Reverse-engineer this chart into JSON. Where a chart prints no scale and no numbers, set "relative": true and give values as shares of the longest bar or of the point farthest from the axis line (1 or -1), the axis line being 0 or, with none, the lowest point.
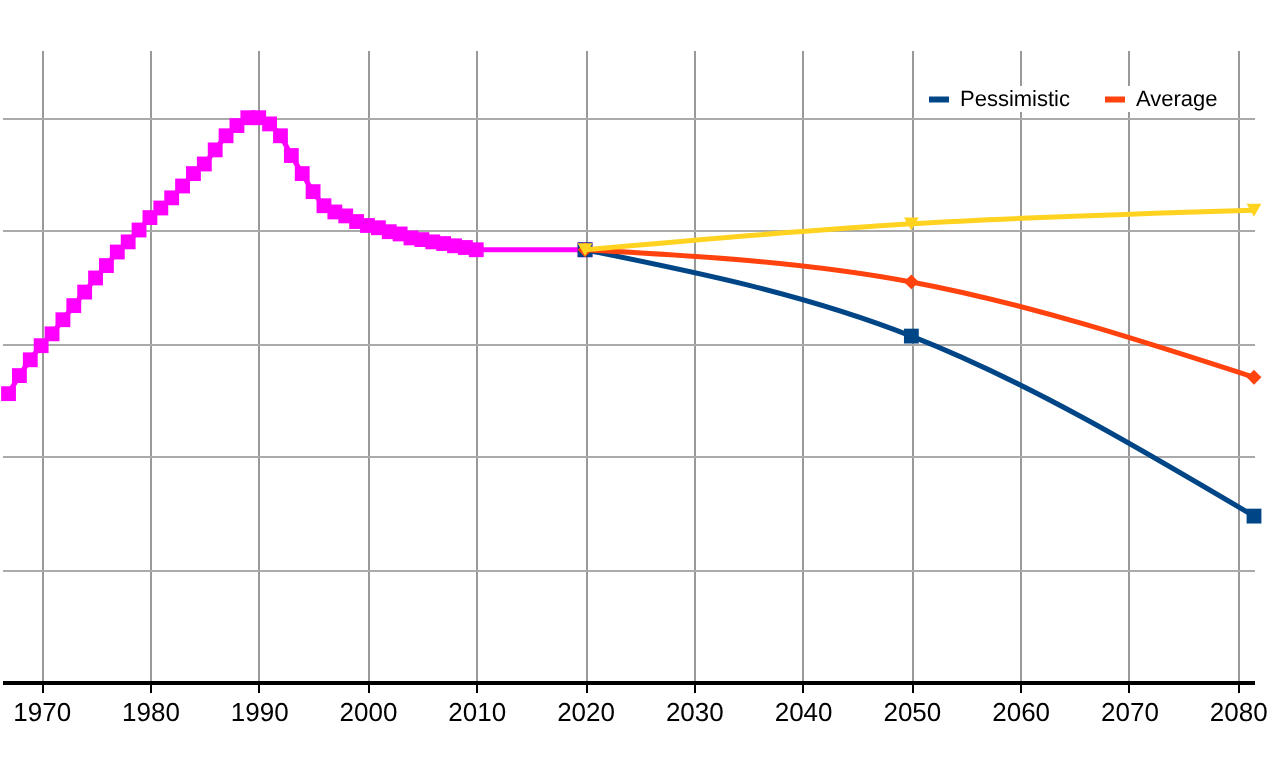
{
  "chart_data": {
    "type": "line",
    "relative": true,
    "grid": true,
    "legend": "top right",
    "line_style": "solid",
    "xlim": [
      1966.4,
      2081.5
    ],
    "xticks": [
      1970,
      1980,
      1990,
      2000,
      2010,
      2020,
      2030,
      2040,
      2050,
      2060,
      2070,
      2080
    ],
    "series": [
      {
        "color": "#ff00ff",
        "marker": "square",
        "x": [
          1967,
          1968,
          1969,
          1970,
          1971,
          1972,
          1973,
          1974,
          1975,
          1976,
          1977,
          1978,
          1979,
          1980,
          1981,
          1982,
          1983,
          1984,
          1985,
          1986,
          1987,
          1988,
          1989,
          1990,
          1991,
          1992,
          1993,
          1994,
          1995,
          1996,
          1997,
          1998,
          1999,
          2000,
          2001,
          2002,
          2003,
          2004,
          2005,
          2006,
          2007,
          2008,
          2009,
          2010,
          2020
        ],
        "values": [
          0.511,
          0.543,
          0.571,
          0.596,
          0.617,
          0.642,
          0.667,
          0.691,
          0.716,
          0.738,
          0.762,
          0.78,
          0.801,
          0.823,
          0.84,
          0.858,
          0.879,
          0.901,
          0.918,
          0.943,
          0.968,
          0.986,
          1,
          1,
          0.989,
          0.968,
          0.933,
          0.901,
          0.869,
          0.844,
          0.833,
          0.826,
          0.816,
          0.809,
          0.805,
          0.798,
          0.794,
          0.787,
          0.784,
          0.78,
          0.777,
          0.773,
          0.77,
          0.766,
          0.766
        ]
      },
      {
        "name": "Pessimistic",
        "color": "#004586",
        "marker": "square",
        "x": [
          2020,
          2050,
          2081.5
        ],
        "values": [
          0.766,
          0.613,
          0.294
        ]
      },
      {
        "name": "Average",
        "color": "#ff420e",
        "marker": "diamond",
        "x": [
          2020,
          2050,
          2081.5
        ],
        "values": [
          0.766,
          0.709,
          0.54
        ]
      },
      {
        "color": "#ffd320",
        "marker": "triangle",
        "x": [
          2020,
          2050,
          2081.5
        ],
        "values": [
          0.766,
          0.812,
          0.836
        ]
      }
    ]
  }
}
